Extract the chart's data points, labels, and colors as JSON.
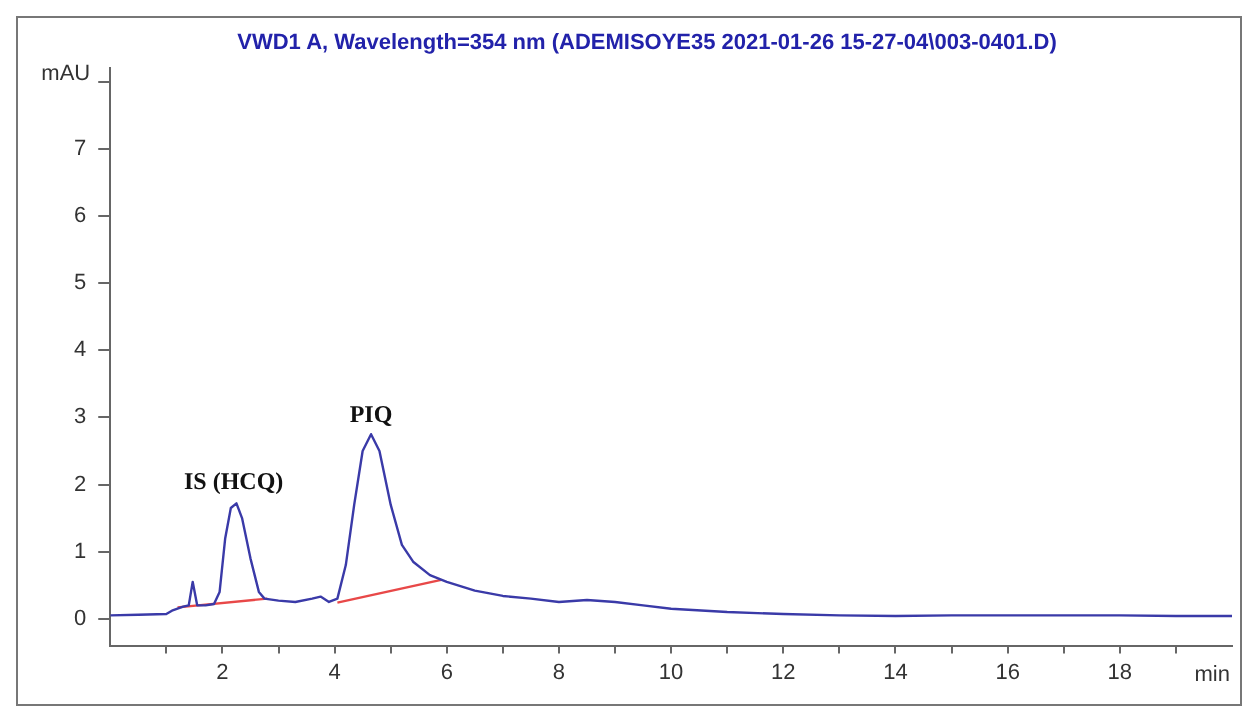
{
  "chart_data": {
    "type": "line",
    "title": "VWD1 A, Wavelength=354 nm (ADEMISOYE35 2021-01-26 15-27-04\\003-0401.D)",
    "xlabel": "min",
    "ylabel": "mAU",
    "series": [
      {
        "color": "#3a3aa8",
        "x": [
          0,
          0.5,
          1.0,
          1.1,
          1.3,
          1.4,
          1.47,
          1.55,
          1.7,
          1.85,
          1.95,
          2.05,
          2.15,
          2.25,
          2.35,
          2.5,
          2.65,
          2.75,
          3.0,
          3.3,
          3.6,
          3.75,
          3.9,
          4.05,
          4.2,
          4.35,
          4.5,
          4.65,
          4.8,
          5.0,
          5.2,
          5.4,
          5.7,
          6.0,
          6.5,
          7.0,
          7.5,
          8.0,
          8.5,
          9.0,
          9.5,
          10,
          11,
          12,
          13,
          14,
          15,
          16,
          17,
          18,
          19,
          20
        ],
        "values": [
          0.05,
          0.06,
          0.07,
          0.12,
          0.18,
          0.2,
          0.55,
          0.2,
          0.2,
          0.22,
          0.4,
          1.2,
          1.65,
          1.72,
          1.5,
          0.9,
          0.4,
          0.3,
          0.27,
          0.25,
          0.3,
          0.33,
          0.25,
          0.3,
          0.8,
          1.7,
          2.5,
          2.75,
          2.5,
          1.7,
          1.1,
          0.85,
          0.65,
          0.55,
          0.42,
          0.34,
          0.3,
          0.25,
          0.28,
          0.25,
          0.2,
          0.15,
          0.1,
          0.07,
          0.05,
          0.04,
          0.05,
          0.05,
          0.05,
          0.05,
          0.04,
          0.04
        ]
      },
      {
        "color": "#e84848",
        "x": [
          1.2,
          2.8
        ],
        "values": [
          0.17,
          0.3
        ]
      },
      {
        "color": "#e84848",
        "x": [
          4.05,
          5.9
        ],
        "values": [
          0.24,
          0.58
        ]
      }
    ],
    "xlim": [
      0,
      20
    ],
    "ylim": [
      -0.4,
      8.2
    ],
    "xticks": [
      {
        "value": 1,
        "label": null
      },
      2,
      {
        "value": 3,
        "label": null
      },
      4,
      {
        "value": 5,
        "label": null
      },
      6,
      {
        "value": 7,
        "label": null
      },
      8,
      {
        "value": 9,
        "label": null
      },
      10,
      {
        "value": 11,
        "label": null
      },
      12,
      {
        "value": 13,
        "label": null
      },
      14,
      {
        "value": 15,
        "label": null
      },
      16,
      {
        "value": 17,
        "label": null
      },
      18,
      {
        "value": 19,
        "label": null
      }
    ],
    "yticks": [
      0,
      1,
      2,
      3,
      4,
      5,
      6,
      7,
      {
        "value": 8,
        "label": null
      }
    ],
    "annotations": [
      {
        "text": "IS (HCQ)",
        "x": 2.2,
        "y": 1.75
      },
      {
        "text": "PIQ",
        "x": 4.65,
        "y": 2.75
      }
    ],
    "grid": false,
    "legend": false,
    "marker": "none",
    "line_style": "solid"
  }
}
